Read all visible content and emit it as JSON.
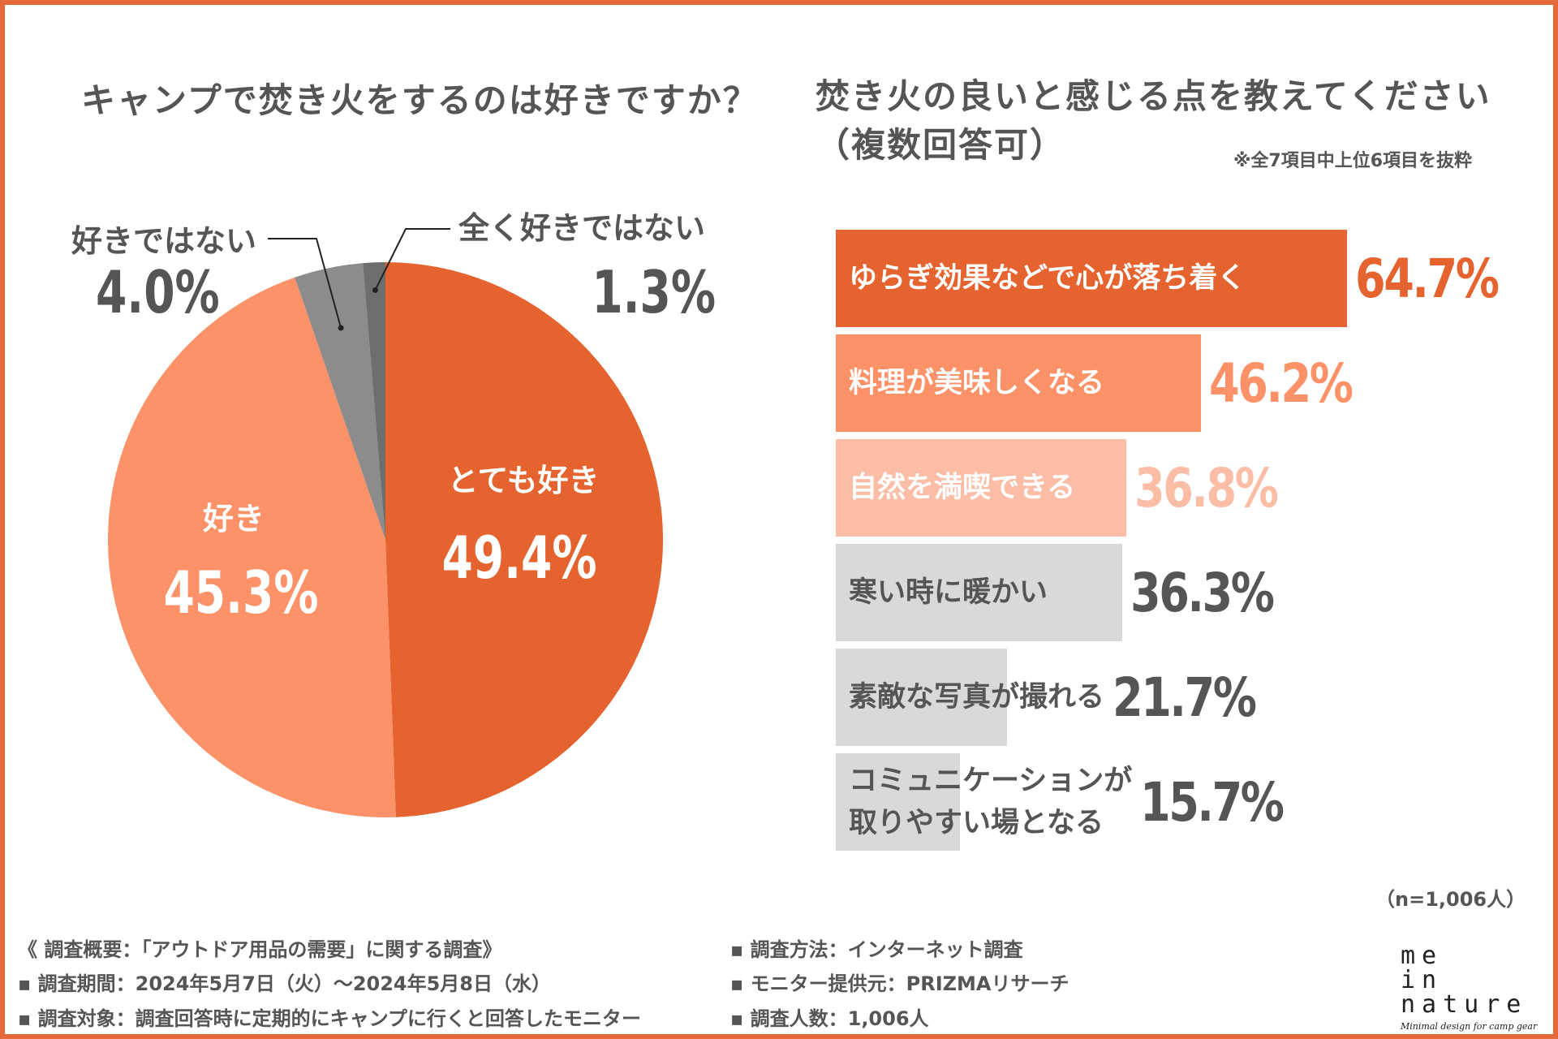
{
  "pie_title": "キャンプで焚き火をするのは好きですか？",
  "bar_title_line1": "焚き火の良いと感じる点を教えてください",
  "bar_title_line2": "（複数回答可）",
  "bar_note": "※全7項目中上位6項目を抜粋",
  "sample_size": "（n=1,006人）",
  "colors": {
    "accent": "#E4632F",
    "light_orange": "#FD9168",
    "pale_orange": "#FCBDA6",
    "gray_bar": "#D9D9D9",
    "dark_gray": "#8C8C8C",
    "darker_gray": "#6E6E6E",
    "text": "#555555"
  },
  "chart_data": [
    {
      "type": "pie",
      "title": "キャンプで焚き火をするのは好きですか？",
      "categories": [
        "とても好き",
        "好き",
        "好きではない",
        "全く好きではない"
      ],
      "values": [
        49.4,
        45.3,
        4.0,
        1.3
      ],
      "value_labels": [
        "49.4%",
        "45.3%",
        "4.0%",
        "1.3%"
      ],
      "colors": [
        "#E4632F",
        "#FD9168",
        "#8C8C8C",
        "#6E6E6E"
      ]
    },
    {
      "type": "bar",
      "orientation": "horizontal",
      "title": "焚き火の良いと感じる点を教えてください（複数回答可）",
      "categories": [
        "ゆらぎ効果などで心が落ち着く",
        "料理が美味しくなる",
        "自然を満喫できる",
        "寒い時に暖かい",
        "素敵な写真が撮れる",
        "コミュニケーションが\n取りやすい場となる"
      ],
      "values": [
        64.7,
        46.2,
        36.8,
        36.3,
        21.7,
        15.7
      ],
      "value_labels": [
        "64.7%",
        "46.2%",
        "36.8%",
        "36.3%",
        "21.7%",
        "15.7%"
      ],
      "colors": [
        "#E4632F",
        "#FD9168",
        "#FCBDA6",
        "#D9D9D9",
        "#D9D9D9",
        "#D9D9D9"
      ],
      "label_colors": [
        "#FFFFFF",
        "#FFFFFF",
        "#FFFFFF",
        "#555555",
        "#555555",
        "#555555"
      ],
      "value_colors": [
        "#E4632F",
        "#FD9168",
        "#FCBDA6",
        "#555555",
        "#555555",
        "#555555"
      ],
      "xlim": [
        0,
        64.7
      ]
    }
  ],
  "footer": {
    "overview": "《 調査概要：「アウトドア用品の需要」に関する調査》",
    "period": "▪ 調査期間：2024年5月7日（火）～2024年5月8日（水）",
    "target": "▪ 調査対象：調査回答時に定期的にキャンプに行くと回答したモニター",
    "method": "▪ 調査方法：インターネット調査",
    "provider": "▪ モニター提供元：PRIZMAリサーチ",
    "count": "▪ 調査人数：1,006人"
  },
  "logo": {
    "line1": "me",
    "line2": "in",
    "line3": "nature",
    "tagline": "Minimal design for camp gear"
  }
}
